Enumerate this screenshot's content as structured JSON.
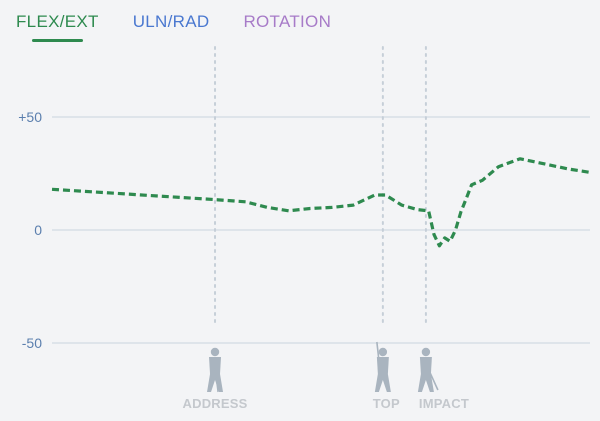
{
  "tabs": [
    {
      "label": "FLEX/EXT",
      "color": "#2e8a4f",
      "active": true
    },
    {
      "label": "ULN/RAD",
      "color": "#4a78d0",
      "active": false
    },
    {
      "label": "ROTATION",
      "color": "#a77bc8",
      "active": false
    }
  ],
  "chart_data": {
    "type": "line",
    "ylim": [
      -65,
      75
    ],
    "xlim": [
      0,
      100
    ],
    "y_ticks": [
      {
        "label": "+50",
        "value": 50
      },
      {
        "label": "0",
        "value": 0
      },
      {
        "label": "-50",
        "value": -50
      }
    ],
    "grid": true,
    "series": [
      {
        "color": "#2e8a4f",
        "style": "dashed",
        "points": [
          [
            0,
            18
          ],
          [
            10,
            16.5
          ],
          [
            20,
            15
          ],
          [
            30,
            13.5
          ],
          [
            36,
            12.5
          ],
          [
            40,
            10
          ],
          [
            44,
            8.5
          ],
          [
            48,
            9.5
          ],
          [
            52,
            10
          ],
          [
            56,
            11
          ],
          [
            60,
            15.5
          ],
          [
            62,
            15.5
          ],
          [
            65,
            11
          ],
          [
            68,
            9
          ],
          [
            70,
            8.5
          ],
          [
            71,
            -2
          ],
          [
            72,
            -7
          ],
          [
            73,
            -3.5
          ],
          [
            74,
            -5
          ],
          [
            75,
            0
          ],
          [
            76,
            8
          ],
          [
            77,
            14
          ],
          [
            78,
            20
          ],
          [
            80,
            22
          ],
          [
            83,
            28
          ],
          [
            87,
            31.5
          ],
          [
            91,
            29.5
          ],
          [
            96,
            27
          ],
          [
            100,
            25.5
          ]
        ]
      }
    ],
    "phases": [
      {
        "label": "ADDRESS",
        "x": 30.3,
        "icon": "golfer-address-icon"
      },
      {
        "label": "TOP",
        "x": 61.5,
        "icon": "golfer-top-icon"
      },
      {
        "label": "IMPACT",
        "x": 69.5,
        "icon": "golfer-impact-icon"
      }
    ]
  }
}
